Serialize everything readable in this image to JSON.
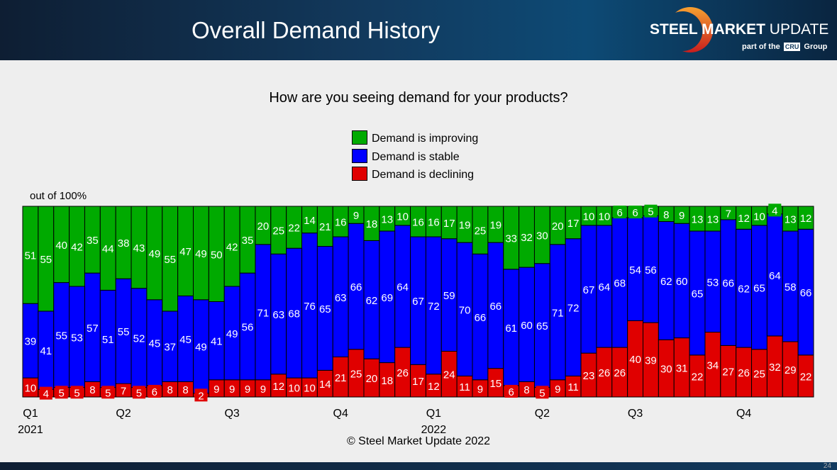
{
  "header": {
    "title": "Overall Demand History",
    "logo": {
      "name_bold": "STEEL MARKET",
      "name_light": " UPDATE",
      "sub_before": "part of the",
      "sub_badge": "CRU",
      "sub_after": "Group"
    }
  },
  "question": "How are you seeing demand for your products?",
  "unit_label": "out of 100%",
  "copyright": "© Steel Market Update 2022",
  "page_number": "24",
  "chart_data": {
    "type": "bar",
    "stacked": true,
    "title": "How are you seeing demand for your products?",
    "ylabel": "out of 100%",
    "ylim": [
      0,
      100
    ],
    "grid": false,
    "legend_placement": "top-center",
    "quarter_ticks": [
      {
        "index": 0,
        "label": "Q1",
        "year": "2021"
      },
      {
        "index": 6,
        "label": "Q2"
      },
      {
        "index": 13,
        "label": "Q3"
      },
      {
        "index": 20,
        "label": "Q4"
      },
      {
        "index": 26,
        "label": "Q1",
        "year": "2022"
      },
      {
        "index": 33,
        "label": "Q2"
      },
      {
        "index": 39,
        "label": "Q3"
      },
      {
        "index": 46,
        "label": "Q4"
      }
    ],
    "series": [
      {
        "name": "Demand is declining",
        "color": "#e00000",
        "values": [
          10,
          4,
          5,
          5,
          8,
          5,
          7,
          5,
          6,
          8,
          8,
          2,
          9,
          9,
          9,
          9,
          12,
          10,
          10,
          14,
          21,
          25,
          20,
          18,
          26,
          17,
          12,
          24,
          11,
          9,
          15,
          6,
          8,
          5,
          9,
          11,
          23,
          26,
          26,
          40,
          39,
          30,
          31,
          22,
          34,
          27,
          26,
          25,
          32,
          29,
          22
        ]
      },
      {
        "name": "Demand is stable",
        "color": "#0000ff",
        "values": [
          39,
          41,
          55,
          53,
          57,
          51,
          55,
          52,
          45,
          37,
          45,
          49,
          41,
          49,
          56,
          71,
          63,
          68,
          76,
          65,
          63,
          66,
          62,
          69,
          64,
          67,
          72,
          59,
          70,
          66,
          66,
          61,
          60,
          65,
          71,
          72,
          67,
          64,
          68,
          54,
          56,
          62,
          60,
          65,
          53,
          66,
          62,
          65,
          64,
          58,
          66
        ]
      },
      {
        "name": "Demand is improving",
        "color": "#00aa00",
        "values": [
          51,
          55,
          40,
          42,
          35,
          44,
          38,
          43,
          49,
          55,
          47,
          49,
          50,
          42,
          35,
          20,
          25,
          22,
          14,
          21,
          16,
          9,
          18,
          13,
          10,
          16,
          16,
          17,
          19,
          25,
          19,
          33,
          32,
          30,
          20,
          17,
          10,
          10,
          6,
          6,
          5,
          8,
          9,
          13,
          13,
          7,
          12,
          10,
          4,
          13,
          12
        ]
      }
    ]
  }
}
